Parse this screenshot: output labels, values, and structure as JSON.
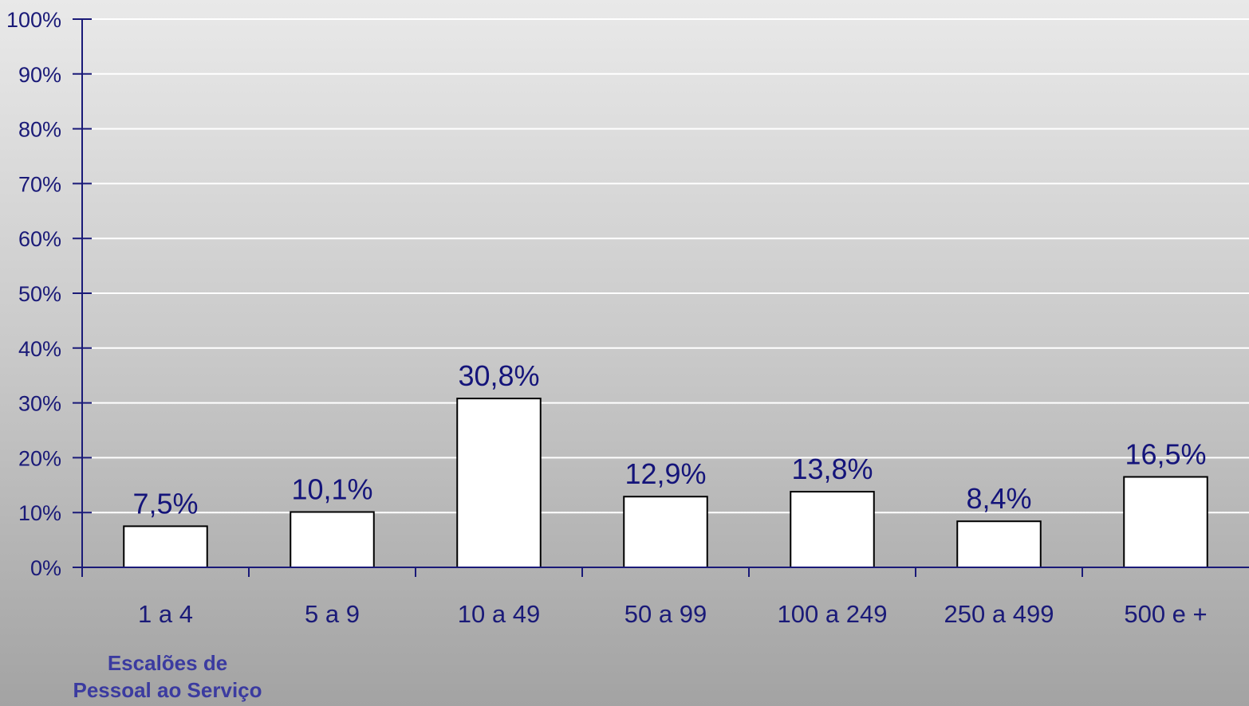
{
  "chart_data": {
    "type": "bar",
    "categories": [
      "1 a 4",
      "5 a 9",
      "10 a 49",
      "50 a 99",
      "100 a 249",
      "250 a 499",
      "500 e +"
    ],
    "values": [
      7.5,
      10.1,
      30.8,
      12.9,
      13.8,
      8.4,
      16.5
    ],
    "data_labels": [
      "7,5%",
      "10,1%",
      "30,8%",
      "12,9%",
      "13,8%",
      "8,4%",
      "16,5%"
    ],
    "title": "",
    "xlabel_lines": [
      "Escalões de",
      "Pessoal ao Serviço"
    ],
    "ylabel": "",
    "ylim": [
      0,
      100
    ],
    "yticks": [
      0,
      10,
      20,
      30,
      40,
      50,
      60,
      70,
      80,
      90,
      100
    ],
    "ytick_labels": [
      "0%",
      "10%",
      "20%",
      "30%",
      "40%",
      "50%",
      "60%",
      "70%",
      "80%",
      "90%",
      "100%"
    ],
    "grid": true,
    "legend": "none",
    "colors": {
      "bar_fill": "#ffffff",
      "bar_stroke": "#000000",
      "axis": "#1a1a78",
      "grid": "#ffffff",
      "label_text": "#14147a",
      "axis_title": "#3b3ba0"
    }
  }
}
